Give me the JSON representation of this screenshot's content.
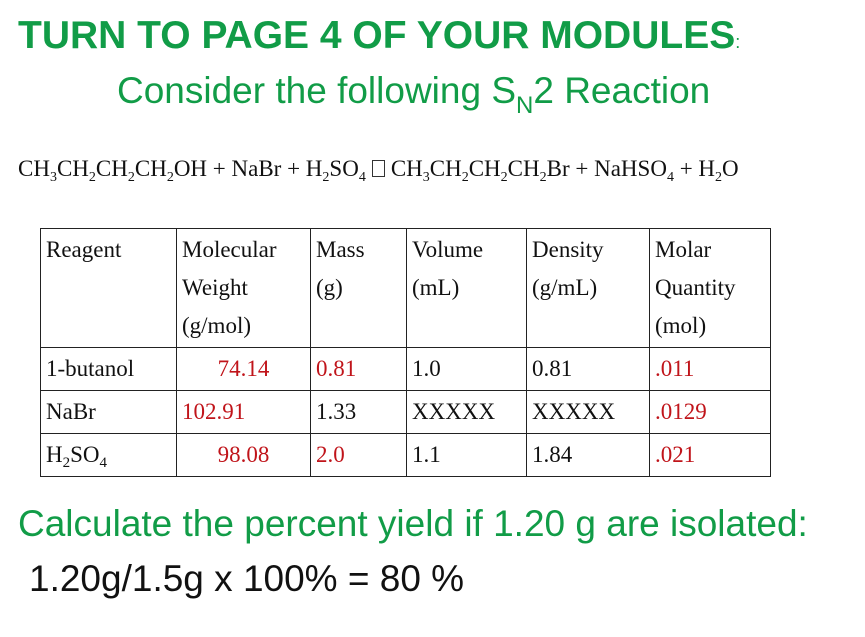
{
  "heading": {
    "text": "TURN TO PAGE 4 OF YOUR MODULES",
    "suffix": ":"
  },
  "subtitle": {
    "pre": "Consider the following S",
    "sub": "N",
    "post": "2 Reaction"
  },
  "equation": {
    "left": [
      "CH",
      "3",
      "CH",
      "2",
      "CH",
      "2",
      "CH",
      "2",
      "OH + NaBr + H",
      "2",
      "SO",
      "4"
    ],
    "right": [
      "CH",
      "3",
      "CH",
      "2",
      "CH",
      "2",
      "CH",
      "2",
      "Br + NaHSO",
      "4",
      " + H",
      "2",
      "O"
    ]
  },
  "table": {
    "headers": [
      [
        "Reagent"
      ],
      [
        "Molecular",
        "Weight",
        "(g/mol)"
      ],
      [
        "Mass",
        "(g)"
      ],
      [
        "Volume",
        "(mL)"
      ],
      [
        "Density",
        "(g/mL)"
      ],
      [
        "Molar",
        "Quantity",
        "(mol)"
      ]
    ],
    "rows": [
      {
        "reagent": "1-butanol",
        "mw": "74.14",
        "mass": "0.81",
        "volume": "1.0",
        "density": "0.81",
        "molar": ".011"
      },
      {
        "reagent": "NaBr",
        "mw": "102.91",
        "mass": "1.33",
        "volume": "XXXXX",
        "density": "XXXXX",
        "molar": ".0129"
      },
      {
        "reagent_pre": "H",
        "reagent_sub1": "2",
        "reagent_mid": "SO",
        "reagent_sub2": "4",
        "mw": "98.08",
        "mass": "2.0",
        "volume": "1.1",
        "density": "1.84",
        "molar": ".021"
      }
    ]
  },
  "calc_question": "Calculate the percent yield if 1.20 g are isolated:",
  "calc_answer": "1.20g/1.5g x 100% = 80 %",
  "colors": {
    "green": "#119c47",
    "red": "#c0141a",
    "text": "#111111"
  }
}
